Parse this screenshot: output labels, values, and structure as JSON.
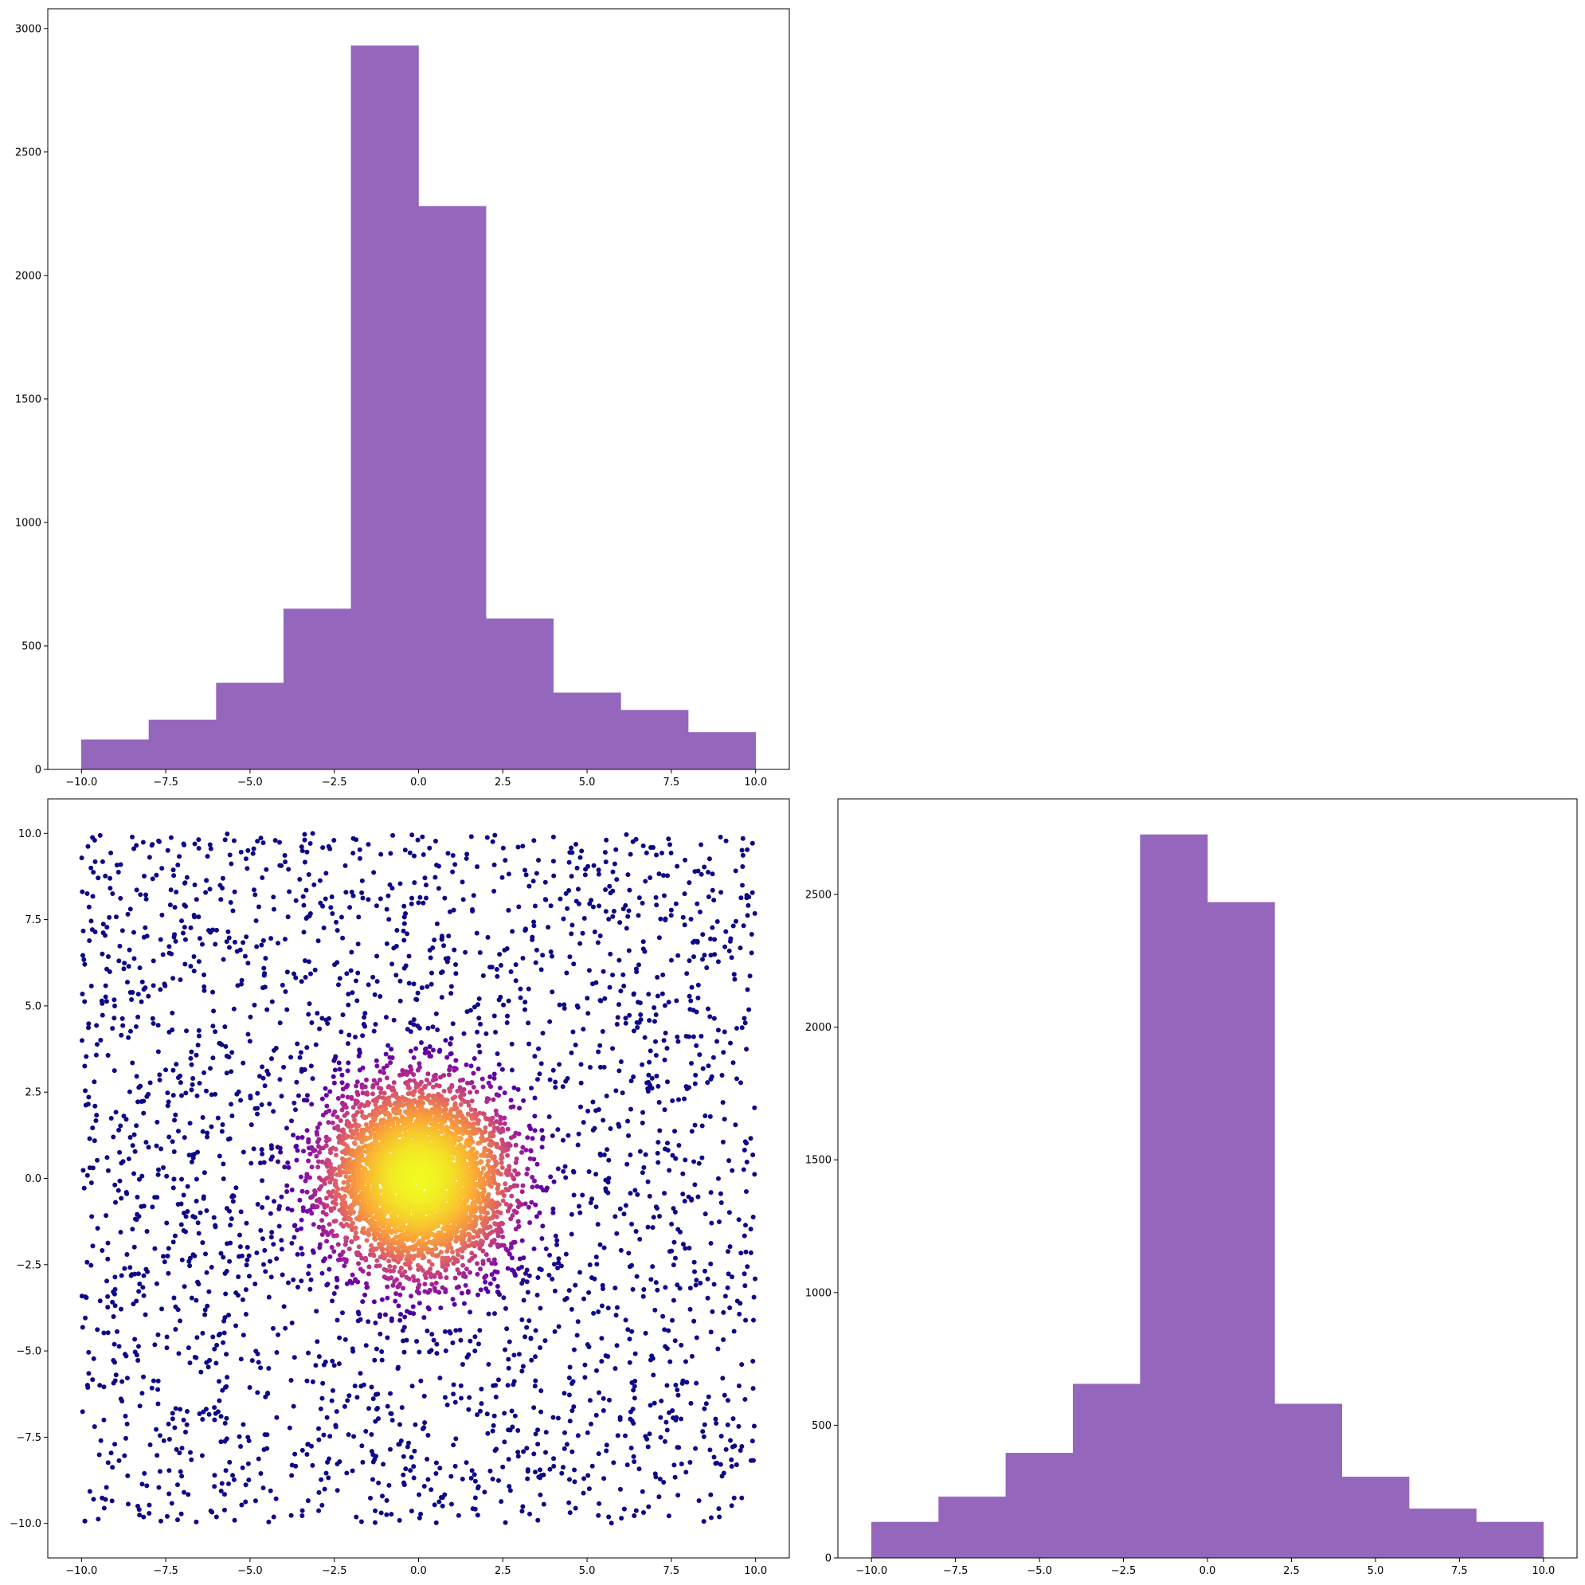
{
  "chart_data": [
    {
      "type": "bar",
      "subtype": "histogram",
      "panel": "top-left",
      "bin_edges": [
        -10,
        -8,
        -6,
        -4,
        -2,
        0,
        2,
        4,
        6,
        8,
        10
      ],
      "values": [
        120,
        200,
        350,
        650,
        2930,
        2280,
        610,
        310,
        240,
        150
      ],
      "color": "#9467bd",
      "xlim": [
        -11,
        11
      ],
      "ylim": [
        0,
        3080
      ],
      "xticks": [
        -10.0,
        -7.5,
        -5.0,
        -2.5,
        0.0,
        2.5,
        5.0,
        7.5,
        10.0
      ],
      "xtick_labels": [
        "−10.0",
        "−7.5",
        "−5.0",
        "−2.5",
        "0.0",
        "2.5",
        "5.0",
        "7.5",
        "10.0"
      ],
      "yticks": [
        0,
        500,
        1000,
        1500,
        2000,
        2500,
        3000
      ],
      "ytick_labels": [
        "0",
        "500",
        "1000",
        "1500",
        "2000",
        "2500",
        "3000"
      ],
      "title": "",
      "xlabel": "",
      "ylabel": "",
      "grid": false
    },
    {
      "type": "scatter",
      "panel": "bottom-left",
      "points": 7000,
      "x_distribution": "mixture: 62% normal(mean 0, sd 1.3) clipped to [-10, 10], 38% uniform[-10, 10]",
      "y_distribution": "mixture: 62% normal(mean 0, sd 1.3) clipped to [-10, 10], 38% uniform[-10, 10]",
      "color_by": "point density (low to high)",
      "colormap": [
        "#0d0887",
        "#6a00a8",
        "#b12a90",
        "#e16462",
        "#fca636",
        "#f0f921"
      ],
      "marker_size": 3,
      "xlim": [
        -11,
        11
      ],
      "ylim": [
        -11,
        11
      ],
      "xticks": [
        -10.0,
        -7.5,
        -5.0,
        -2.5,
        0.0,
        2.5,
        5.0,
        7.5,
        10.0
      ],
      "xtick_labels": [
        "−10.0",
        "−7.5",
        "−5.0",
        "−2.5",
        "0.0",
        "2.5",
        "5.0",
        "7.5",
        "10.0"
      ],
      "yticks": [
        -10.0,
        -7.5,
        -5.0,
        -2.5,
        0.0,
        2.5,
        5.0,
        7.5,
        10.0
      ],
      "ytick_labels": [
        "−10.0",
        "−7.5",
        "−5.0",
        "−2.5",
        "0.0",
        "2.5",
        "5.0",
        "7.5",
        "10.0"
      ],
      "title": "",
      "xlabel": "",
      "ylabel": "",
      "grid": false
    },
    {
      "type": "bar",
      "subtype": "histogram",
      "panel": "bottom-right",
      "bin_edges": [
        -10,
        -8,
        -6,
        -4,
        -2,
        0,
        2,
        4,
        6,
        8,
        10
      ],
      "values": [
        135,
        230,
        395,
        655,
        2725,
        2470,
        580,
        305,
        185,
        135
      ],
      "color": "#9467bd",
      "xlim": [
        -11,
        11
      ],
      "ylim": [
        0,
        2860
      ],
      "xticks": [
        -10.0,
        -7.5,
        -5.0,
        -2.5,
        0.0,
        2.5,
        5.0,
        7.5,
        10.0
      ],
      "xtick_labels": [
        "−10.0",
        "−7.5",
        "−5.0",
        "−2.5",
        "0.0",
        "2.5",
        "5.0",
        "7.5",
        "10.0"
      ],
      "yticks": [
        0,
        500,
        1000,
        1500,
        2000,
        2500
      ],
      "ytick_labels": [
        "0",
        "500",
        "1000",
        "1500",
        "2000",
        "2500"
      ],
      "title": "",
      "xlabel": "",
      "ylabel": "",
      "grid": false
    }
  ]
}
